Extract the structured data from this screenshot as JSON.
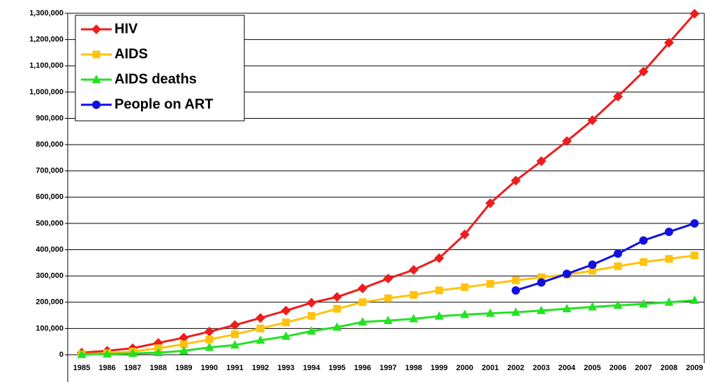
{
  "chart_data": {
    "type": "line",
    "categories": [
      "1985",
      "1986",
      "1987",
      "1988",
      "1989",
      "1990",
      "1991",
      "1992",
      "1993",
      "1994",
      "1995",
      "1996",
      "1997",
      "1998",
      "1999",
      "2000",
      "2001",
      "2002",
      "2003",
      "2004",
      "2005",
      "2006",
      "2007",
      "2008",
      "2009"
    ],
    "series": [
      {
        "name": "HIV",
        "color": "#ee1c1c",
        "marker": "diamond",
        "values": [
          8000,
          15000,
          25000,
          45000,
          65000,
          88000,
          113000,
          140000,
          168000,
          198000,
          220000,
          253000,
          290000,
          323000,
          368000,
          458000,
          577000,
          663000,
          737000,
          813000,
          893000,
          983000,
          1078000,
          1188000,
          1298000
        ]
      },
      {
        "name": "AIDS",
        "color": "#ffc20e",
        "marker": "square",
        "values": [
          2000,
          6000,
          12000,
          25000,
          40000,
          58000,
          78000,
          100000,
          123000,
          148000,
          175000,
          200000,
          215000,
          228000,
          245000,
          257000,
          270000,
          283000,
          295000,
          305000,
          320000,
          337000,
          353000,
          365000,
          378000
        ]
      },
      {
        "name": "AIDS deaths",
        "color": "#22e222",
        "marker": "triangle",
        "values": [
          1000,
          3000,
          5000,
          8000,
          15000,
          28000,
          37000,
          55000,
          70000,
          90000,
          105000,
          125000,
          130000,
          137000,
          147000,
          153000,
          158000,
          162000,
          168000,
          175000,
          182000,
          188000,
          193000,
          200000,
          207000
        ]
      },
      {
        "name": "People on ART",
        "color": "#1010e0",
        "marker": "circle",
        "values": [
          null,
          null,
          null,
          null,
          null,
          null,
          null,
          null,
          null,
          null,
          null,
          null,
          null,
          null,
          null,
          null,
          null,
          245000,
          275000,
          308000,
          343000,
          385000,
          435000,
          468000,
          500000
        ]
      }
    ],
    "ylim": [
      0,
      1300000
    ],
    "yticks": [
      0,
      {
        "value": 100000,
        "label": "100,000"
      },
      {
        "value": 200000,
        "label": "200,000"
      },
      {
        "value": 300000,
        "label": "300,000"
      },
      {
        "value": 400000,
        "label": "400,000"
      },
      {
        "value": 500000,
        "label": "500,000"
      },
      {
        "value": 600000,
        "label": "600,000"
      },
      {
        "value": 700000,
        "label": "700,000"
      },
      {
        "value": 800000,
        "label": "800,000"
      },
      {
        "value": 900000,
        "label": "900,000"
      },
      {
        "value": 1000000,
        "label": "1,000,000"
      },
      {
        "value": 1100000,
        "label": "1,100,000"
      },
      {
        "value": 1200000,
        "label": "1,200,000"
      },
      {
        "value": 1300000,
        "label": "1,300,000"
      }
    ],
    "grid": true,
    "legend": "top-left"
  }
}
